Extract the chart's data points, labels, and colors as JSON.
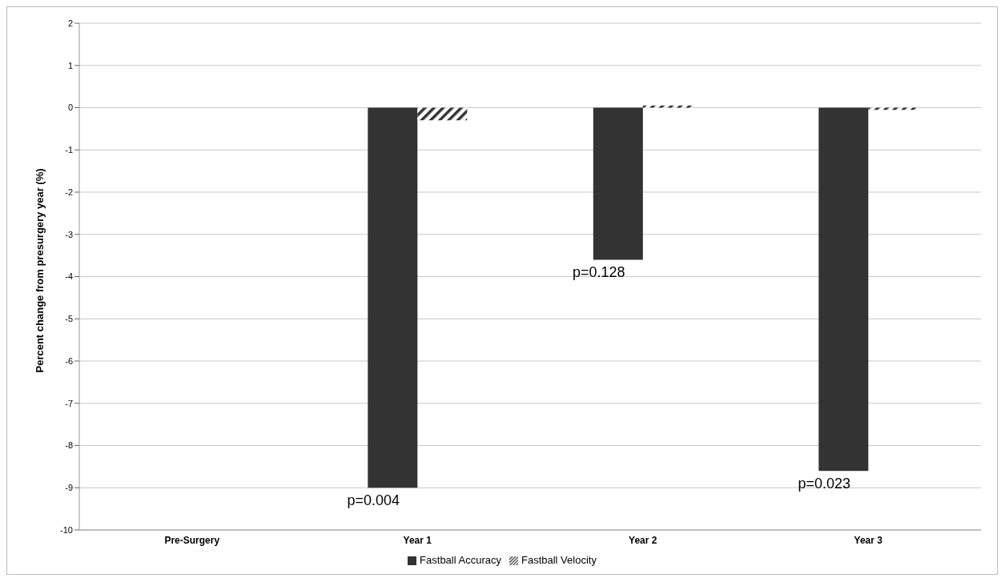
{
  "chart_data": {
    "type": "bar",
    "ylabel": "Percent change from presurgery year (%)",
    "categories": [
      "Pre-Surgery",
      "Year 1",
      "Year 2",
      "Year 3"
    ],
    "series": [
      {
        "name": "Fastball Accuracy",
        "color": "#333333",
        "values": [
          0,
          -9.0,
          -3.6,
          -8.6
        ]
      },
      {
        "name": "Fastball Velocity",
        "color": "#333333",
        "values": [
          0,
          -0.3,
          0.05,
          -0.05
        ]
      }
    ],
    "ylim": [
      -10,
      2
    ],
    "yticks": [
      -10,
      -9,
      -8,
      -7,
      -6,
      -5,
      -4,
      -3,
      -2,
      -1,
      0,
      1,
      2
    ],
    "grid": "y",
    "legend": "bottom",
    "annotations": [
      {
        "text": "p=0.004",
        "x": "Year 1",
        "y": -9.0
      },
      {
        "text": "p=0.128",
        "x": "Year 2",
        "y": -3.6
      },
      {
        "text": "p=0.023",
        "x": "Year 3",
        "y": -8.6
      }
    ]
  }
}
